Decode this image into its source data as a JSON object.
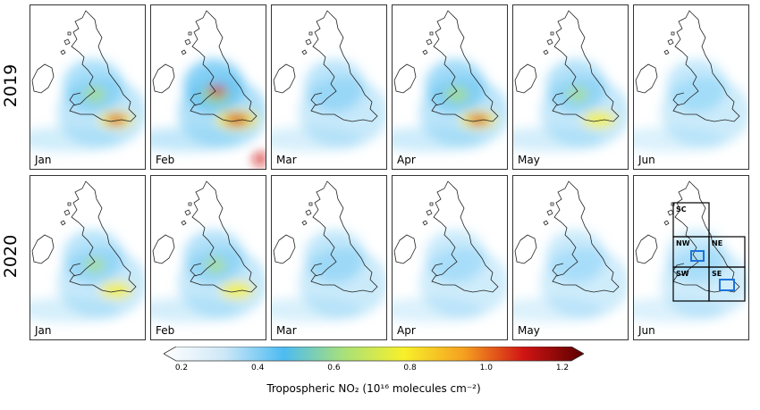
{
  "rows": [
    {
      "label": "2019",
      "months": [
        "Jan",
        "Feb",
        "Mar",
        "Apr",
        "May",
        "Jun"
      ],
      "intensity": [
        0.55,
        0.95,
        0.35,
        0.65,
        0.45,
        0.25
      ]
    },
    {
      "label": "2020",
      "months": [
        "Jan",
        "Feb",
        "Mar",
        "Apr",
        "May",
        "Jun"
      ],
      "intensity": [
        0.4,
        0.45,
        0.3,
        0.2,
        0.2,
        0.2
      ]
    }
  ],
  "regions": [
    "SC",
    "NW",
    "NE",
    "SW",
    "SE"
  ],
  "colorbar": {
    "ticks": [
      "0.2",
      "0.4",
      "0.6",
      "0.8",
      "1.0",
      "1.2"
    ],
    "label": "Tropospheric NO₂ (10¹⁶ molecules cm⁻²)",
    "colors": [
      "#ffffff",
      "#cfe8f7",
      "#4dbbf2",
      "#a8e07a",
      "#f7f02a",
      "#f5a020",
      "#d01414",
      "#5a0000"
    ]
  }
}
